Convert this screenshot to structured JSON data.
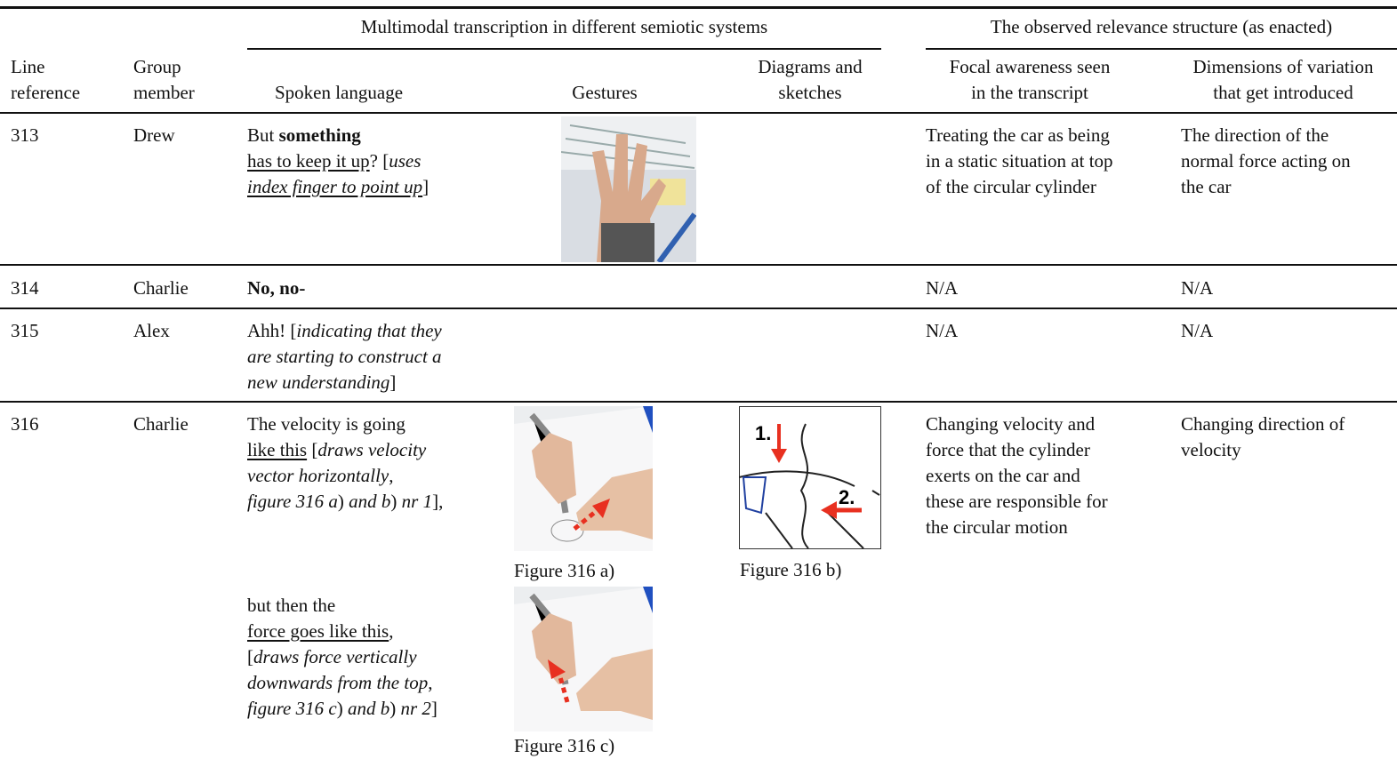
{
  "header": {
    "group_transcription": "Multimodal transcription in different semiotic systems",
    "group_relevance": "The observed relevance structure (as enacted)",
    "columns": [
      [
        "Line",
        "reference"
      ],
      [
        "Group",
        "member"
      ],
      [
        "Spoken language"
      ],
      [
        "Gestures"
      ],
      [
        "Diagrams and",
        "sketches"
      ],
      [
        "Focal awareness seen",
        "in the transcript"
      ],
      [
        "Dimensions of variation",
        "that get introduced"
      ]
    ]
  },
  "rows": [
    {
      "line": "313",
      "member": "Drew",
      "spoken": [
        [
          "But ",
          "something"
        ],
        [
          "has to keep it up",
          "? [",
          "uses"
        ],
        [
          "index finger to point up",
          "]"
        ]
      ],
      "focal": [
        "Treating the car as being",
        "in a static situation at top",
        "of the circular cylinder"
      ],
      "dimensions": [
        "The direction of the",
        "normal force acting on",
        "the car"
      ]
    },
    {
      "line": "314",
      "member": "Charlie",
      "spoken": [
        [
          "No, no-"
        ]
      ],
      "focal": [
        "N/A"
      ],
      "dimensions": [
        "N/A"
      ]
    },
    {
      "line": "315",
      "member": "Alex",
      "spoken": [
        [
          "Ahh! [",
          "indicating that they"
        ],
        [
          "are starting to construct a"
        ],
        [
          "new understanding",
          "]"
        ]
      ],
      "focal": [
        "N/A"
      ],
      "dimensions": [
        "N/A"
      ]
    },
    {
      "line": "316",
      "member": "Charlie",
      "spoken": [
        [
          "The velocity is going"
        ],
        [
          "like this",
          " [",
          "draws velocity"
        ],
        [
          "vector horizontally",
          ","
        ],
        [
          "figure 316 a",
          ") ",
          "and b",
          ") ",
          "nr 1",
          "],"
        ]
      ],
      "spoken_continued": [
        [
          "but then the"
        ],
        [
          "force goes like this",
          ","
        ],
        [
          "[",
          "draws force vertically"
        ],
        [
          "downwards from the top",
          ","
        ],
        [
          "figure 316 c",
          ") ",
          "and b",
          ") ",
          "nr 2",
          "]"
        ]
      ],
      "figures": [
        {
          "caption": "Figure 316 a)"
        },
        {
          "caption": "Figure 316 b)",
          "labels": [
            "1.",
            "2."
          ]
        },
        {
          "caption": "Figure 316 c)"
        }
      ],
      "focal": [
        "Changing velocity and",
        "force that the cylinder",
        "exerts on the car and",
        "these are responsible for",
        "the circular motion"
      ],
      "dimensions": [
        "Changing direction of",
        "velocity"
      ]
    }
  ]
}
